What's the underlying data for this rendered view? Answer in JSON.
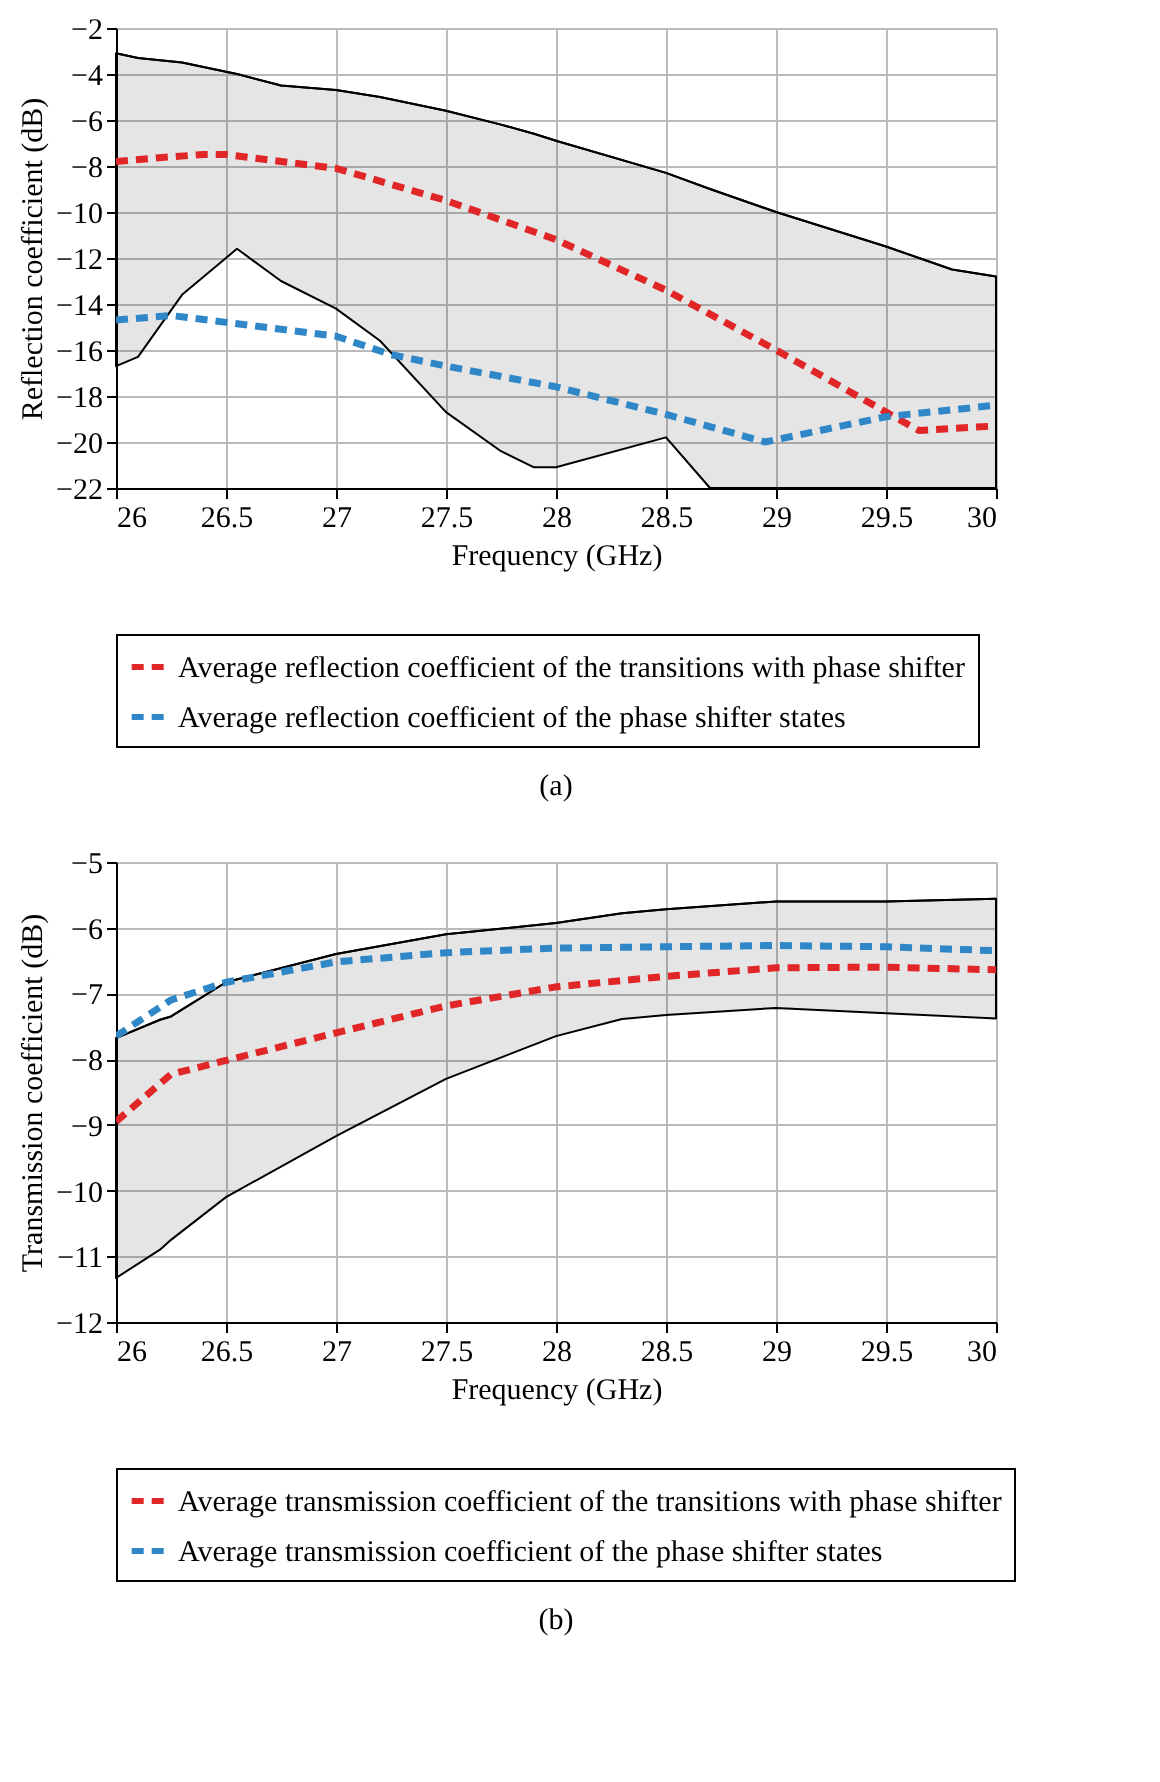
{
  "chart_data": [
    {
      "type": "line",
      "title": "(a)",
      "xlabel": "Frequency (GHz)",
      "ylabel": "Reflection coefficient (dB)",
      "xlim": [
        26,
        30
      ],
      "xticks": [
        26,
        26.5,
        27,
        27.5,
        28,
        28.5,
        29,
        29.5,
        30
      ],
      "ylim": [
        -22,
        -2
      ],
      "yticks": [
        -22,
        -20,
        -18,
        -16,
        -14,
        -12,
        -10,
        -8,
        -6,
        -4,
        -2
      ],
      "grid": true,
      "legend": "bottom",
      "line_style": "dashed",
      "series": [
        {
          "type": "line",
          "line_style": "solid",
          "color": "#000000",
          "x": [
            26,
            26.1,
            26.3,
            26.5,
            26.55,
            26.75,
            27,
            27.2,
            27.5,
            27.75,
            27.9,
            28,
            28.5,
            28.7,
            29,
            29.5,
            29.8,
            30
          ],
          "values": [
            -3.1,
            -3.3,
            -3.5,
            -3.9,
            -4.0,
            -4.5,
            -4.7,
            -5.0,
            -5.6,
            -6.2,
            -6.6,
            -6.9,
            -8.3,
            -9.0,
            -10.0,
            -11.5,
            -12.5,
            -12.8
          ],
          "upper": [
            -3.1,
            -3.3,
            -3.5,
            -3.9,
            -4.0,
            -4.5,
            -4.7,
            -5.0,
            -5.6,
            -6.2,
            -6.6,
            -6.9,
            -8.3,
            -9.0,
            -10.0,
            -11.5,
            -12.5,
            -12.8
          ],
          "lower": [
            -16.7,
            -16.3,
            -13.6,
            -12.0,
            -11.6,
            -13.0,
            -14.2,
            -15.6,
            -18.7,
            -20.4,
            -21.1,
            -21.1,
            -19.8,
            -22,
            -22,
            -22,
            -22,
            -22
          ]
        },
        {
          "name": "Average reflection coefficient of the transitions with phase shifter",
          "color": "#e02626",
          "x": [
            26,
            26.25,
            26.4,
            26.5,
            27,
            27.5,
            28,
            28.5,
            29,
            29.5,
            29.65,
            30
          ],
          "values": [
            -7.8,
            -7.6,
            -7.5,
            -7.5,
            -8.1,
            -9.5,
            -11.2,
            -13.4,
            -16.0,
            -18.7,
            -19.5,
            -19.3
          ]
        },
        {
          "name": "Average reflection coefficient of the phase shifter states",
          "color": "#2f87c8",
          "x": [
            26,
            26.25,
            26.5,
            27,
            27.25,
            27.5,
            28,
            28.5,
            28.95,
            29.5,
            30
          ],
          "values": [
            -14.7,
            -14.5,
            -14.8,
            -15.4,
            -16.2,
            -16.7,
            -17.6,
            -18.8,
            -20.0,
            -18.9,
            -18.4
          ]
        }
      ]
    },
    {
      "type": "line",
      "title": "(b)",
      "xlabel": "Frequency (GHz)",
      "ylabel": "Transmission coefficient (dB)",
      "xlim": [
        26,
        30
      ],
      "xticks": [
        26,
        26.5,
        27,
        27.5,
        28,
        28.5,
        29,
        29.5,
        30
      ],
      "ylim": [
        -12,
        -5
      ],
      "yticks": [
        -12,
        -11,
        -10,
        -9,
        -8,
        -7,
        -6,
        -5
      ],
      "grid": true,
      "legend": "bottom",
      "line_style": "dashed",
      "series": [
        {
          "type": "line",
          "line_style": "solid",
          "color": "#000000",
          "x": [
            26,
            26.2,
            26.25,
            26.5,
            27,
            27.5,
            28,
            28.3,
            28.5,
            29,
            29.5,
            30
          ],
          "values": [
            -7.68,
            -7.4,
            -7.35,
            -6.83,
            -6.4,
            -6.1,
            -5.93,
            -5.78,
            -5.72,
            -5.6,
            -5.6,
            -5.56
          ],
          "upper": [
            -7.68,
            -7.4,
            -7.35,
            -6.83,
            -6.4,
            -6.1,
            -5.93,
            -5.78,
            -5.72,
            -5.6,
            -5.6,
            -5.56
          ],
          "lower": [
            -11.33,
            -10.9,
            -10.75,
            -10.1,
            -9.17,
            -8.3,
            -7.65,
            -7.39,
            -7.33,
            -7.22,
            -7.3,
            -7.38
          ]
        },
        {
          "name": "Average transmission coefficient of the transitions with phase shifter",
          "color": "#e02626",
          "x": [
            26,
            26.25,
            26.5,
            27,
            27.5,
            28,
            28.5,
            29,
            29.5,
            30
          ],
          "values": [
            -8.95,
            -8.23,
            -8.02,
            -7.6,
            -7.19,
            -6.9,
            -6.74,
            -6.61,
            -6.6,
            -6.64
          ]
        },
        {
          "name": "Average transmission coefficient of the phase shifter states",
          "color": "#2f87c8",
          "x": [
            26,
            26.25,
            26.5,
            27,
            27.5,
            28,
            28.5,
            29,
            29.5,
            30
          ],
          "values": [
            -7.65,
            -7.1,
            -6.83,
            -6.52,
            -6.38,
            -6.31,
            -6.29,
            -6.27,
            -6.29,
            -6.35
          ]
        }
      ]
    }
  ]
}
